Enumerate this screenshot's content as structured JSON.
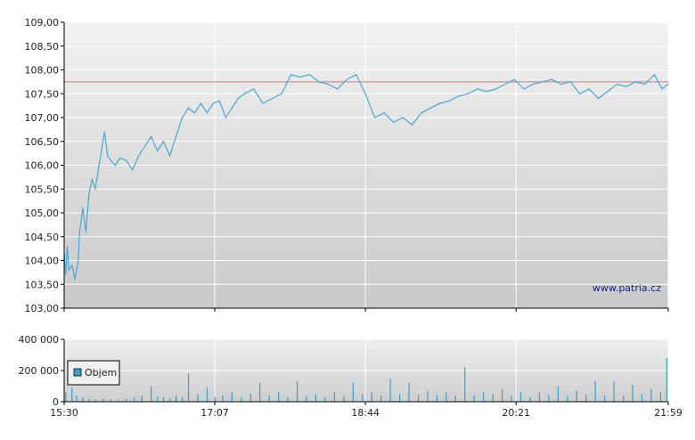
{
  "colors": {
    "price_line": "#4aa7d4",
    "reference_line": "#e07070",
    "volume_bar": "#3aa0cf",
    "grid": "#ffffff",
    "axis": "#000000"
  },
  "watermark": "www.patria.cz",
  "chart_data": [
    {
      "type": "line",
      "title": "",
      "xlabel": "",
      "ylabel": "",
      "x_range": [
        "15:30",
        "21:59"
      ],
      "ylim": [
        103.0,
        109.0
      ],
      "yticks": [
        "103,00",
        "103,50",
        "104,00",
        "104,50",
        "105,00",
        "105,50",
        "106,00",
        "106,50",
        "107,00",
        "107,50",
        "108,00",
        "108,50",
        "109,00"
      ],
      "xticks": [
        "15:30",
        "17:07",
        "18:44",
        "20:21",
        "21:59"
      ],
      "grid": true,
      "reference_line": 107.75,
      "series": [
        {
          "x": [
            "15:30",
            "15:31",
            "15:32",
            "15:33",
            "15:35",
            "15:37",
            "15:39",
            "15:40",
            "15:42",
            "15:44",
            "15:46",
            "15:48",
            "15:50",
            "15:52",
            "15:54",
            "15:56",
            "15:58",
            "16:00",
            "16:03",
            "16:06",
            "16:10",
            "16:14",
            "16:18",
            "16:22",
            "16:26",
            "16:30",
            "16:34",
            "16:38",
            "16:42",
            "16:46",
            "16:50",
            "16:54",
            "16:58",
            "17:02",
            "17:06",
            "17:10",
            "17:14",
            "17:18",
            "17:22",
            "17:26",
            "17:32",
            "17:38",
            "17:44",
            "17:50",
            "17:56",
            "18:02",
            "18:08",
            "18:14",
            "18:20",
            "18:26",
            "18:32",
            "18:38",
            "18:44",
            "18:50",
            "18:56",
            "19:02",
            "19:08",
            "19:14",
            "19:20",
            "19:26",
            "19:32",
            "19:38",
            "19:44",
            "19:50",
            "19:56",
            "20:02",
            "20:08",
            "20:14",
            "20:20",
            "20:26",
            "20:32",
            "20:38",
            "20:44",
            "20:50",
            "20:56",
            "21:02",
            "21:08",
            "21:14",
            "21:20",
            "21:26",
            "21:32",
            "21:38",
            "21:44",
            "21:50",
            "21:55",
            "21:59"
          ],
          "values": [
            104.2,
            103.7,
            104.3,
            103.8,
            103.9,
            103.6,
            104.0,
            104.6,
            105.1,
            104.6,
            105.4,
            105.7,
            105.5,
            105.9,
            106.3,
            106.7,
            106.2,
            106.1,
            106.0,
            106.15,
            106.1,
            105.9,
            106.2,
            106.4,
            106.6,
            106.3,
            106.5,
            106.2,
            106.6,
            107.0,
            107.2,
            107.1,
            107.3,
            107.1,
            107.3,
            107.35,
            107.0,
            107.2,
            107.4,
            107.5,
            107.6,
            107.3,
            107.4,
            107.5,
            107.9,
            107.85,
            107.9,
            107.75,
            107.7,
            107.6,
            107.8,
            107.9,
            107.5,
            107.0,
            107.1,
            106.9,
            107.0,
            106.85,
            107.1,
            107.2,
            107.3,
            107.35,
            107.45,
            107.5,
            107.6,
            107.55,
            107.6,
            107.7,
            107.8,
            107.6,
            107.7,
            107.75,
            107.8,
            107.7,
            107.75,
            107.5,
            107.6,
            107.4,
            107.55,
            107.7,
            107.65,
            107.75,
            107.7,
            107.9,
            107.6,
            107.7
          ]
        }
      ]
    },
    {
      "type": "bar",
      "title": "",
      "xlabel": "",
      "ylabel": "",
      "ylim": [
        0,
        400000
      ],
      "yticks": [
        "0",
        "200 000",
        "400 000"
      ],
      "xticks": [
        "15:30",
        "17:07",
        "18:44",
        "20:21",
        "21:59"
      ],
      "grid": true,
      "legend": {
        "placement": "left",
        "entries": [
          "Objem"
        ]
      },
      "series": [
        {
          "name": "Objem",
          "x": [
            "15:31",
            "15:35",
            "15:38",
            "15:42",
            "15:46",
            "15:50",
            "15:55",
            "16:00",
            "16:05",
            "16:10",
            "16:15",
            "16:20",
            "16:26",
            "16:30",
            "16:34",
            "16:38",
            "16:42",
            "16:46",
            "16:50",
            "16:56",
            "17:02",
            "17:07",
            "17:12",
            "17:18",
            "17:24",
            "17:30",
            "17:36",
            "17:42",
            "17:48",
            "17:54",
            "18:00",
            "18:06",
            "18:12",
            "18:18",
            "18:24",
            "18:30",
            "18:36",
            "18:42",
            "18:48",
            "18:54",
            "19:00",
            "19:06",
            "19:12",
            "19:18",
            "19:24",
            "19:30",
            "19:36",
            "19:42",
            "19:48",
            "19:54",
            "20:00",
            "20:06",
            "20:12",
            "20:18",
            "20:24",
            "20:30",
            "20:36",
            "20:42",
            "20:48",
            "20:54",
            "21:00",
            "21:06",
            "21:12",
            "21:18",
            "21:24",
            "21:30",
            "21:36",
            "21:42",
            "21:48",
            "21:54",
            "21:58"
          ],
          "values": [
            60000,
            90000,
            40000,
            30000,
            20000,
            15000,
            20000,
            15000,
            10000,
            20000,
            30000,
            40000,
            100000,
            35000,
            30000,
            25000,
            40000,
            30000,
            180000,
            50000,
            90000,
            30000,
            40000,
            60000,
            30000,
            50000,
            120000,
            40000,
            60000,
            30000,
            130000,
            40000,
            50000,
            30000,
            60000,
            35000,
            120000,
            45000,
            60000,
            40000,
            150000,
            50000,
            120000,
            45000,
            70000,
            40000,
            60000,
            40000,
            220000,
            40000,
            60000,
            50000,
            80000,
            40000,
            60000,
            30000,
            60000,
            45000,
            100000,
            40000,
            70000,
            45000,
            130000,
            40000,
            130000,
            40000,
            110000,
            50000,
            80000,
            60000,
            280000
          ]
        }
      ]
    }
  ]
}
